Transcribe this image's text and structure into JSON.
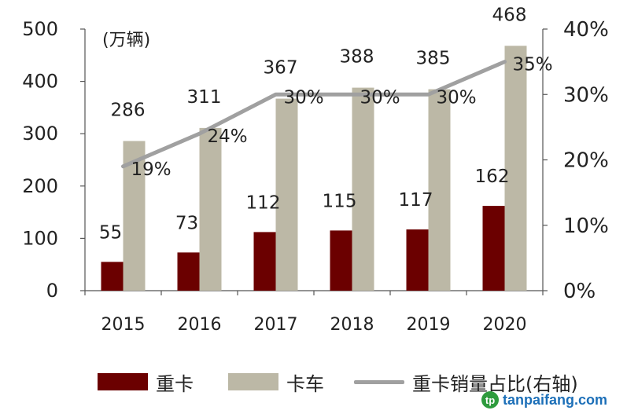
{
  "chart_data": {
    "type": "bar-line",
    "title": "",
    "unit_label": "(万辆)",
    "categories": [
      "2015",
      "2016",
      "2017",
      "2018",
      "2019",
      "2020"
    ],
    "series": [
      {
        "name": "重卡",
        "type": "bar",
        "axis": "left",
        "color": "#6b0000",
        "values": [
          55,
          73,
          112,
          115,
          117,
          162
        ]
      },
      {
        "name": "卡车",
        "type": "bar",
        "axis": "left",
        "color": "#bcb8a6",
        "values": [
          286,
          311,
          367,
          388,
          385,
          468
        ]
      },
      {
        "name": "重卡销量占比(右轴)",
        "type": "line",
        "axis": "right",
        "color": "#a0a0a0",
        "values": [
          19,
          24,
          30,
          30,
          30,
          35
        ],
        "labels": [
          "19%",
          "24%",
          "30%",
          "30%",
          "30%",
          "35%"
        ]
      }
    ],
    "y_left": {
      "min": 0,
      "max": 500,
      "ticks": [
        0,
        100,
        200,
        300,
        400,
        500
      ]
    },
    "y_right": {
      "min": 0,
      "max": 40,
      "ticks": [
        "0%",
        "10%",
        "20%",
        "30%",
        "40%"
      ]
    },
    "grid": false,
    "legend_position": "bottom"
  },
  "watermark": {
    "text": "tanpaifang.com",
    "logo": "tp"
  }
}
